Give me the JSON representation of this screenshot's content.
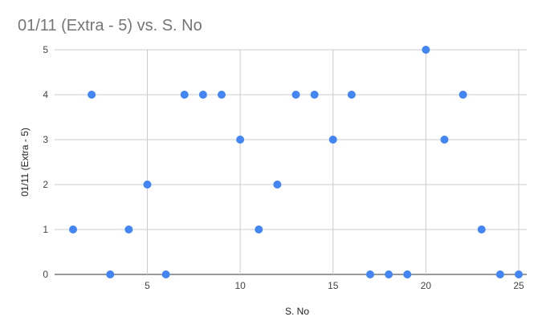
{
  "chart_data": {
    "type": "scatter",
    "title": "01/11 (Extra - 5) vs. S. No",
    "xlabel": "S. No",
    "ylabel": "01/11 (Extra - 5)",
    "xlim": [
      1,
      25
    ],
    "ylim": [
      0,
      5
    ],
    "x_ticks": [
      5,
      10,
      15,
      20,
      25
    ],
    "y_ticks": [
      0,
      1,
      2,
      3,
      4,
      5
    ],
    "grid": true,
    "legend": "none",
    "color": "#4285f4",
    "points": [
      {
        "x": 1,
        "y": 1
      },
      {
        "x": 2,
        "y": 4
      },
      {
        "x": 3,
        "y": 0
      },
      {
        "x": 4,
        "y": 1
      },
      {
        "x": 5,
        "y": 2
      },
      {
        "x": 6,
        "y": 0
      },
      {
        "x": 7,
        "y": 4
      },
      {
        "x": 8,
        "y": 4
      },
      {
        "x": 9,
        "y": 4
      },
      {
        "x": 10,
        "y": 3
      },
      {
        "x": 11,
        "y": 1
      },
      {
        "x": 12,
        "y": 2
      },
      {
        "x": 13,
        "y": 4
      },
      {
        "x": 14,
        "y": 4
      },
      {
        "x": 15,
        "y": 3
      },
      {
        "x": 16,
        "y": 4
      },
      {
        "x": 17,
        "y": 0
      },
      {
        "x": 18,
        "y": 0
      },
      {
        "x": 19,
        "y": 0
      },
      {
        "x": 20,
        "y": 5
      },
      {
        "x": 21,
        "y": 3
      },
      {
        "x": 22,
        "y": 4
      },
      {
        "x": 23,
        "y": 1
      },
      {
        "x": 24,
        "y": 0
      },
      {
        "x": 25,
        "y": 0
      }
    ]
  }
}
